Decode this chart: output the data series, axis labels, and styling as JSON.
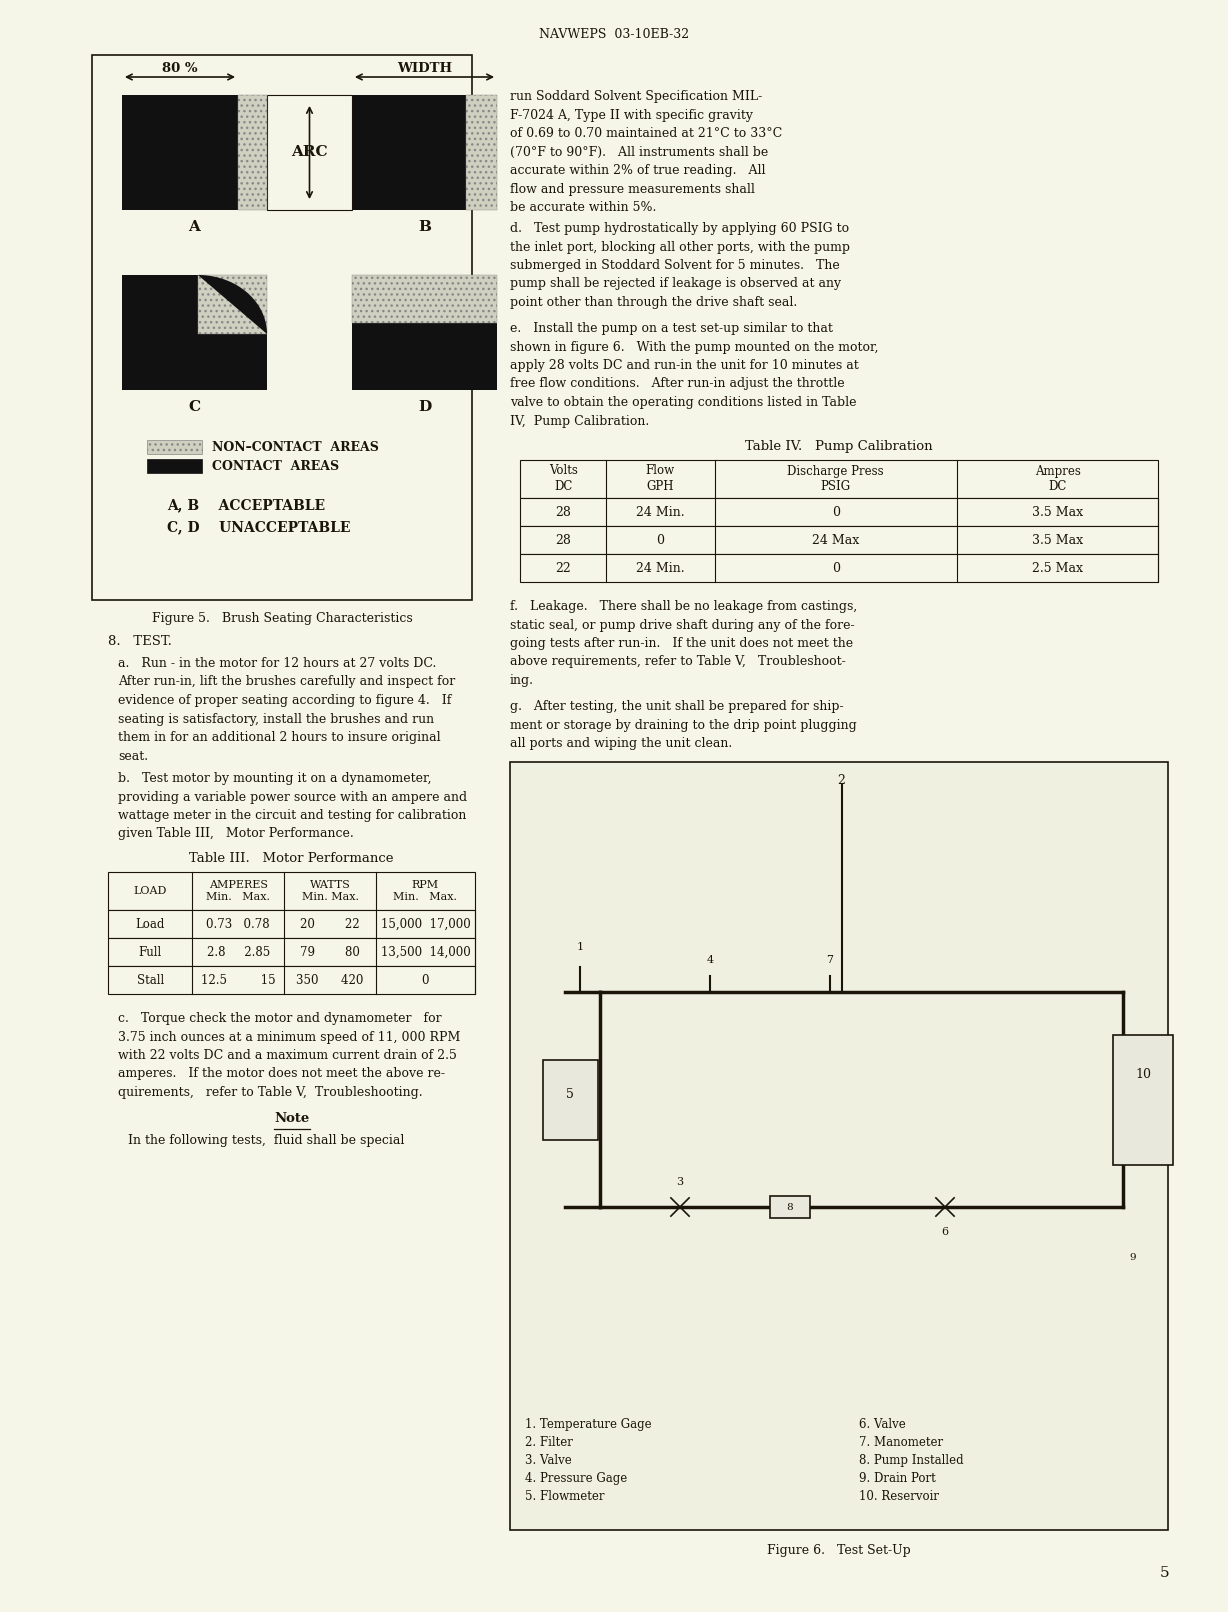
{
  "bg_color": "#F5F5E8",
  "header_text": "NAVWEPS  03-10EB-32",
  "page_number": "5",
  "text_color": "#1a1508",
  "line_color": "#1a1508",
  "fig5_caption": "Figure 5.   Brush Seating Characteristics",
  "fig6_caption": "Figure 6.   Test Set-Up",
  "table3_title": "Table III.   Motor Performance",
  "table4_title": "Table IV.   Pump Calibration",
  "table3_hdr": [
    "LOAD",
    "AMPERES\nMin.   Max.",
    "WATTS\nMin. Max.",
    "RPM\nMin.   Max."
  ],
  "table3_rows": [
    [
      "Load",
      "0.73   0.78",
      "20      22",
      "15,000  17,000"
    ],
    [
      "Full",
      "2.8     2.85",
      "79      80",
      "13,500  14,000"
    ],
    [
      "Stall",
      "12.5       15",
      "350    420",
      "0"
    ]
  ],
  "table4_hdr": [
    "Volts\nDC",
    "Flow\nGPH",
    "Discharge Press\nPSIG",
    "Ampres\nDC"
  ],
  "table4_rows": [
    [
      "28",
      "24 Min.",
      "0",
      "3.5 Max"
    ],
    [
      "28",
      "0",
      "24 Max",
      "3.5 Max"
    ],
    [
      "22",
      "24 Min.",
      "0",
      "2.5 Max"
    ]
  ],
  "fig6_labels_left": [
    "1. Temperature Gage",
    "2. Filter",
    "3. Valve",
    "4. Pressure Gage",
    "5. Flowmeter"
  ],
  "fig6_labels_right": [
    "6. Valve",
    "7. Manometer",
    "8. Pump Installed",
    "9. Drain Port",
    "10. Reservoir"
  ]
}
